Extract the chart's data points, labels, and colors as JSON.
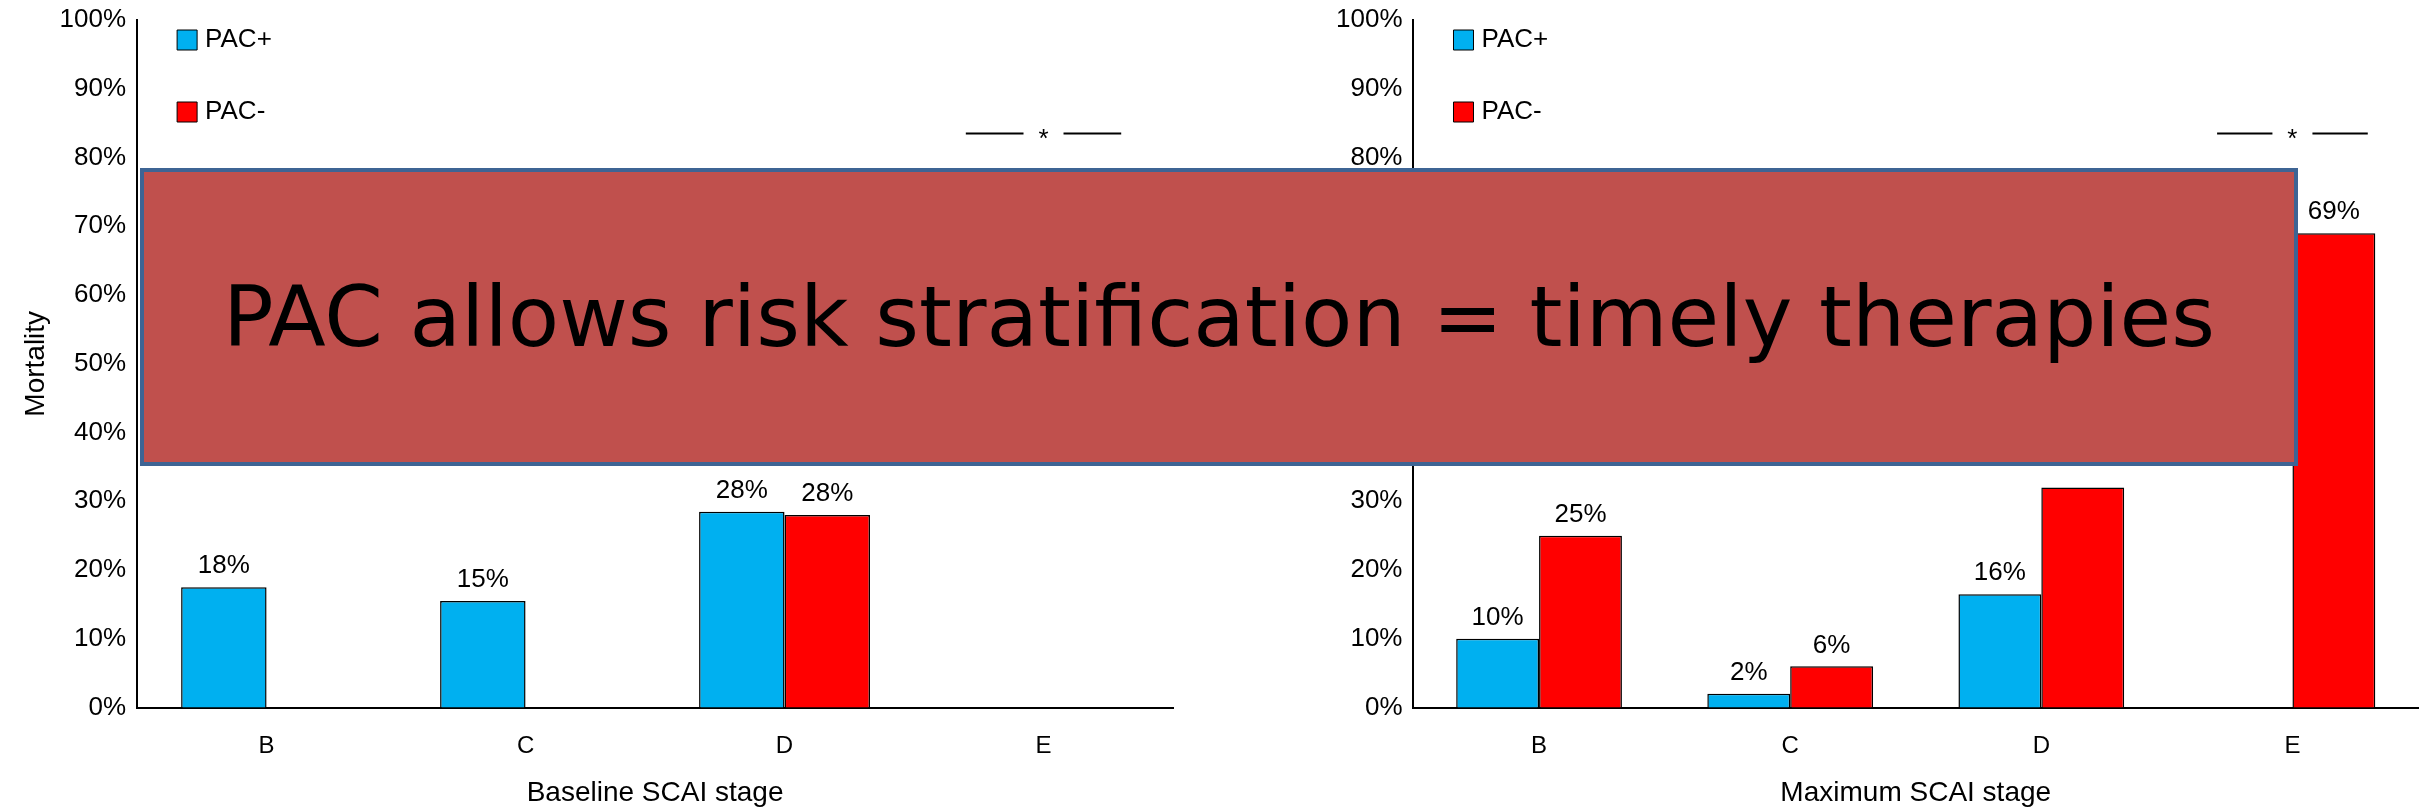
{
  "chart_data": [
    {
      "type": "bar",
      "title": "PAC allows risk stratification = timely therapies",
      "xlabel": "Baseline SCAI stage",
      "ylabel": "Mortality",
      "categories": [
        "B",
        "C",
        "D",
        "E"
      ],
      "series": [
        {
          "name": "PAC+",
          "color": "#00b0f0",
          "values": [
            17.5,
            15.5,
            28.5,
            null
          ],
          "value_labels": [
            "18%",
            "15%",
            "28%",
            null
          ]
        },
        {
          "name": "PAC-",
          "color": "#ff0000",
          "values": [
            null,
            null,
            28,
            null
          ],
          "value_labels": [
            null,
            null,
            "28%",
            null
          ]
        }
      ],
      "ylim": [
        0,
        100
      ],
      "yticks": [
        {
          "value": 0,
          "label": "0%"
        },
        {
          "value": 10,
          "label": "10%"
        },
        {
          "value": 20,
          "label": "20%"
        },
        {
          "value": 30,
          "label": "30%"
        },
        {
          "value": 40,
          "label": "40%"
        },
        {
          "value": 50,
          "label": "50%"
        },
        {
          "value": 60,
          "label": "60%"
        },
        {
          "value": 70,
          "label": "70%"
        },
        {
          "value": 80,
          "label": "80%"
        },
        {
          "value": 90,
          "label": "90%"
        },
        {
          "value": 100,
          "label": "100%"
        }
      ],
      "grid": false,
      "legend": "top left",
      "annotations": [
        "*"
      ]
    },
    {
      "type": "bar",
      "xlabel": "Maximum SCAI stage",
      "categories": [
        "B",
        "C",
        "D",
        "E"
      ],
      "series": [
        {
          "name": "PAC+",
          "color": "#00b0f0",
          "values": [
            10,
            2,
            16.5,
            null
          ],
          "value_labels": [
            "10%",
            "2%",
            "16%",
            null
          ]
        },
        {
          "name": "PAC-",
          "color": "#ff0000",
          "values": [
            25,
            6,
            32,
            69
          ],
          "value_labels": [
            "25%",
            "6%",
            null,
            "69%"
          ]
        }
      ],
      "ylim": [
        0,
        100
      ],
      "yticks": [
        {
          "value": 0,
          "label": "0%"
        },
        {
          "value": 10,
          "label": "10%"
        },
        {
          "value": 20,
          "label": "20%"
        },
        {
          "value": 30,
          "label": "30%"
        },
        {
          "value": 80,
          "label": "80%"
        },
        {
          "value": 90,
          "label": "90%"
        },
        {
          "value": 100,
          "label": "100%"
        }
      ],
      "grid": false,
      "legend": "top left",
      "annotations": [
        "*"
      ]
    }
  ]
}
